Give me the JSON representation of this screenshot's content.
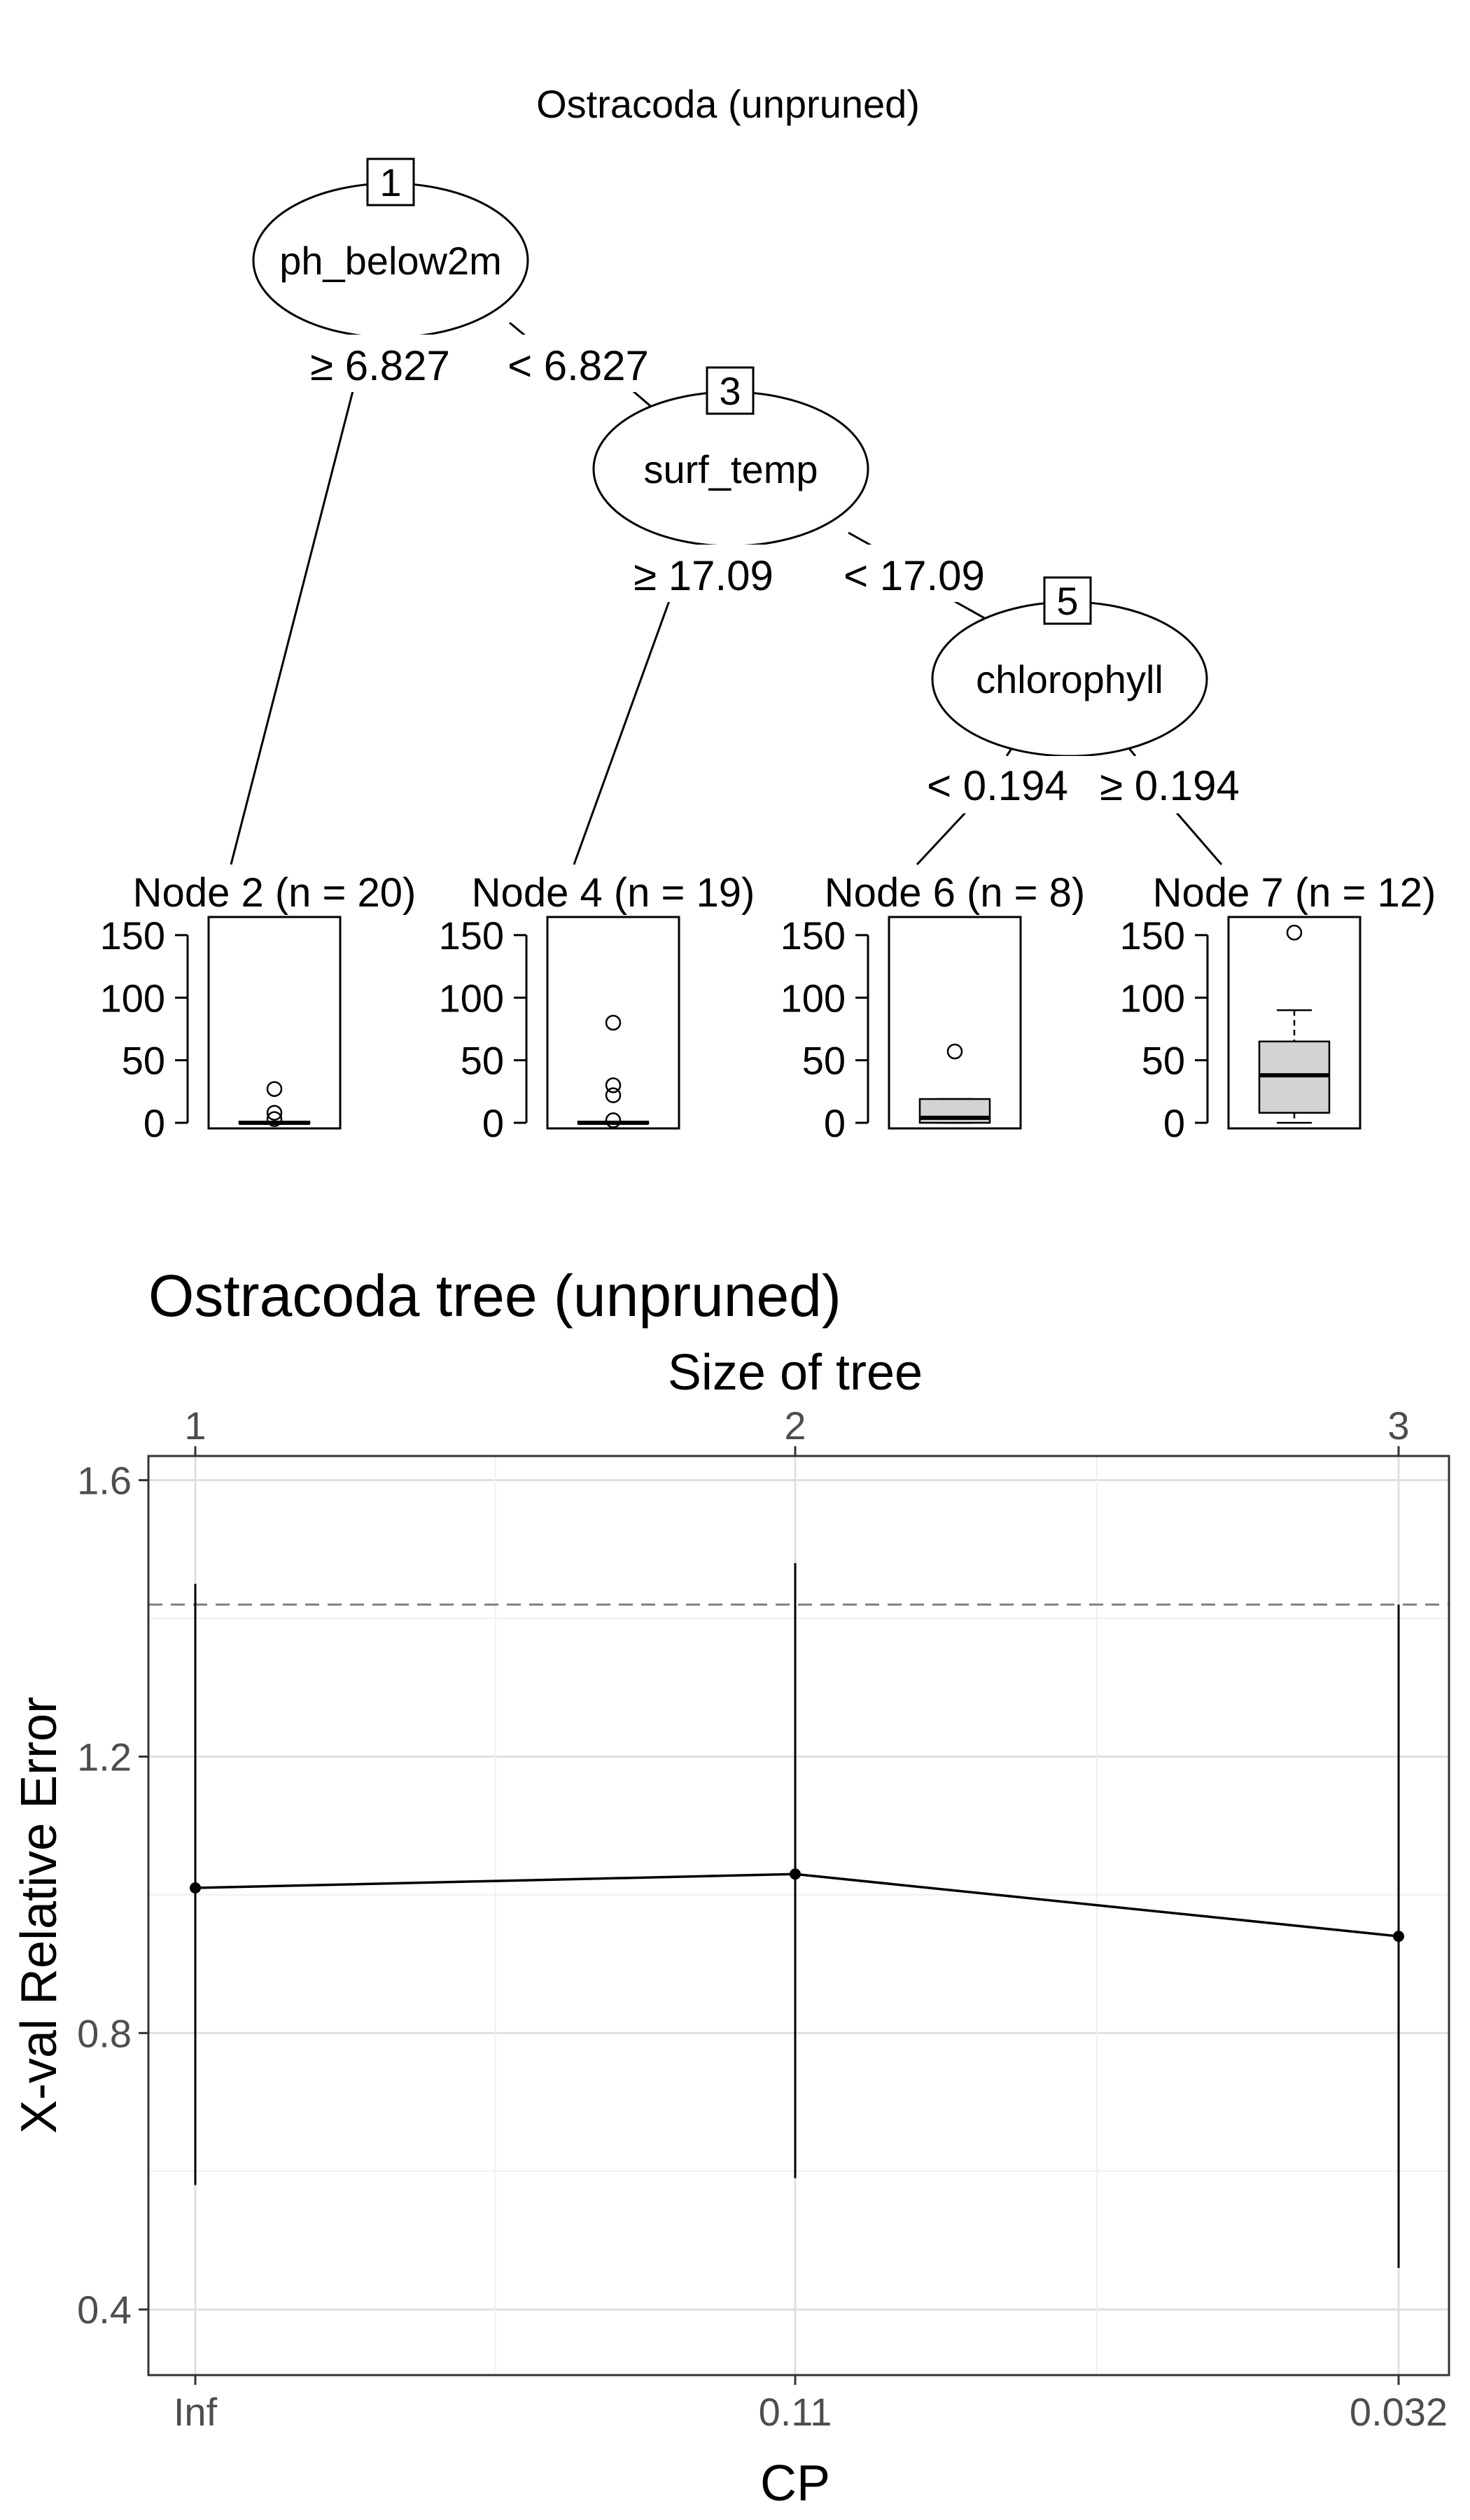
{
  "tree": {
    "title": "Ostracoda (unpruned)",
    "inner_nodes": [
      {
        "id": "1",
        "variable": "ph_below2m",
        "left_label": "≥ 6.827",
        "right_label": "< 6.827"
      },
      {
        "id": "3",
        "variable": "surf_temp",
        "left_label": "≥ 17.09",
        "right_label": "< 17.09"
      },
      {
        "id": "5",
        "variable": "chlorophyll",
        "left_label": "< 0.194",
        "right_label": "≥ 0.194"
      }
    ],
    "terminal_nodes": [
      {
        "label": "Node 2 (n = 20)",
        "q1": 0,
        "median": 0,
        "q3": 1,
        "whisker_low": 0,
        "whisker_high": 1,
        "outliers": [
          27,
          8,
          3
        ]
      },
      {
        "label": "Node 4 (n = 19)",
        "q1": 0,
        "median": 0,
        "q3": 1,
        "whisker_low": 0,
        "whisker_high": 1,
        "outliers": [
          80,
          30,
          22,
          2
        ]
      },
      {
        "label": "Node 6 (n = 8)",
        "q1": 0,
        "median": 4,
        "q3": 19,
        "whisker_low": 0,
        "whisker_high": 19,
        "outliers": [
          57
        ]
      },
      {
        "label": "Node 7 (n = 12)",
        "q1": 8,
        "median": 38,
        "q3": 65,
        "whisker_low": 0,
        "whisker_high": 90,
        "outliers": [
          152
        ]
      }
    ],
    "y_ticks": [
      "150",
      "100",
      "50",
      "0"
    ],
    "y_range": [
      0,
      160
    ]
  },
  "chart_data": {
    "type": "line",
    "title": "Ostracoda tree (unpruned)",
    "top_axis_title": "Size of tree",
    "top_ticks": [
      "1",
      "2",
      "3"
    ],
    "xlabel": "CP",
    "ylabel": "X-val Relative Error",
    "x": [
      "Inf",
      "0.11",
      "0.032"
    ],
    "values": [
      1.01,
      1.03,
      0.94
    ],
    "error_low": [
      0.58,
      0.59,
      0.46
    ],
    "error_high": [
      1.45,
      1.48,
      1.42
    ],
    "reference_line": 1.42,
    "y_ticks": [
      "0.4",
      "0.8",
      "1.2",
      "1.6"
    ],
    "ylim": [
      0.305,
      1.635
    ],
    "grid": true
  }
}
